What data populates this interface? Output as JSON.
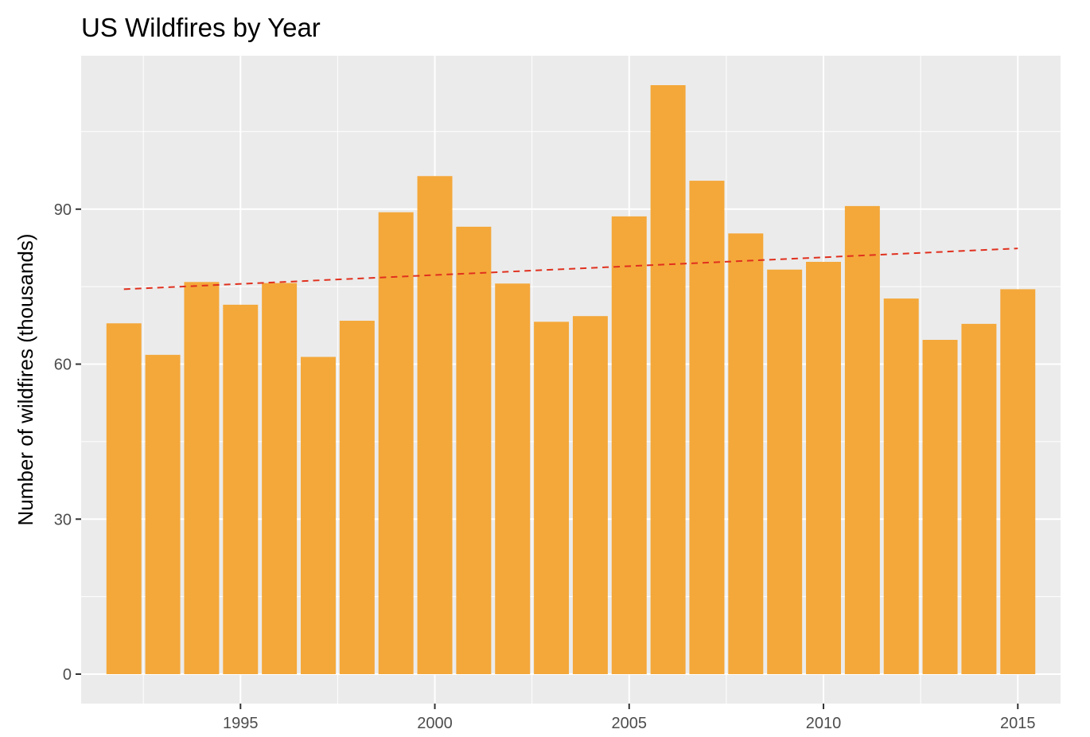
{
  "chart_data": {
    "type": "bar",
    "title": "US Wildfires by Year",
    "xlabel": "",
    "ylabel": "Number of wildfires (thousands)",
    "x": [
      1992,
      1993,
      1994,
      1995,
      1996,
      1997,
      1998,
      1999,
      2000,
      2001,
      2002,
      2003,
      2004,
      2005,
      2006,
      2007,
      2008,
      2009,
      2010,
      2011,
      2012,
      2013,
      2014,
      2015
    ],
    "values": [
      67.9,
      61.8,
      75.9,
      71.5,
      75.7,
      61.4,
      68.4,
      89.4,
      96.4,
      86.6,
      75.6,
      68.2,
      69.3,
      88.6,
      114.0,
      95.5,
      85.3,
      78.3,
      79.8,
      90.6,
      72.7,
      64.7,
      67.8,
      74.5
    ],
    "trend_line": {
      "style": "dashed",
      "color": "#e0301e",
      "x": [
        1992,
        2015
      ],
      "y": [
        74.5,
        82.4
      ]
    },
    "x_ticks": [
      1995,
      2000,
      2005,
      2010,
      2015
    ],
    "y_ticks": [
      0,
      30,
      60,
      90
    ],
    "xlim": [
      1990.9,
      2016.1
    ],
    "ylim": [
      -5.7,
      119.7
    ],
    "bar_color": "#f4a83a",
    "panel_color": "#ebebeb",
    "grid_color": "#ffffff",
    "grid": true,
    "legend": "none"
  }
}
